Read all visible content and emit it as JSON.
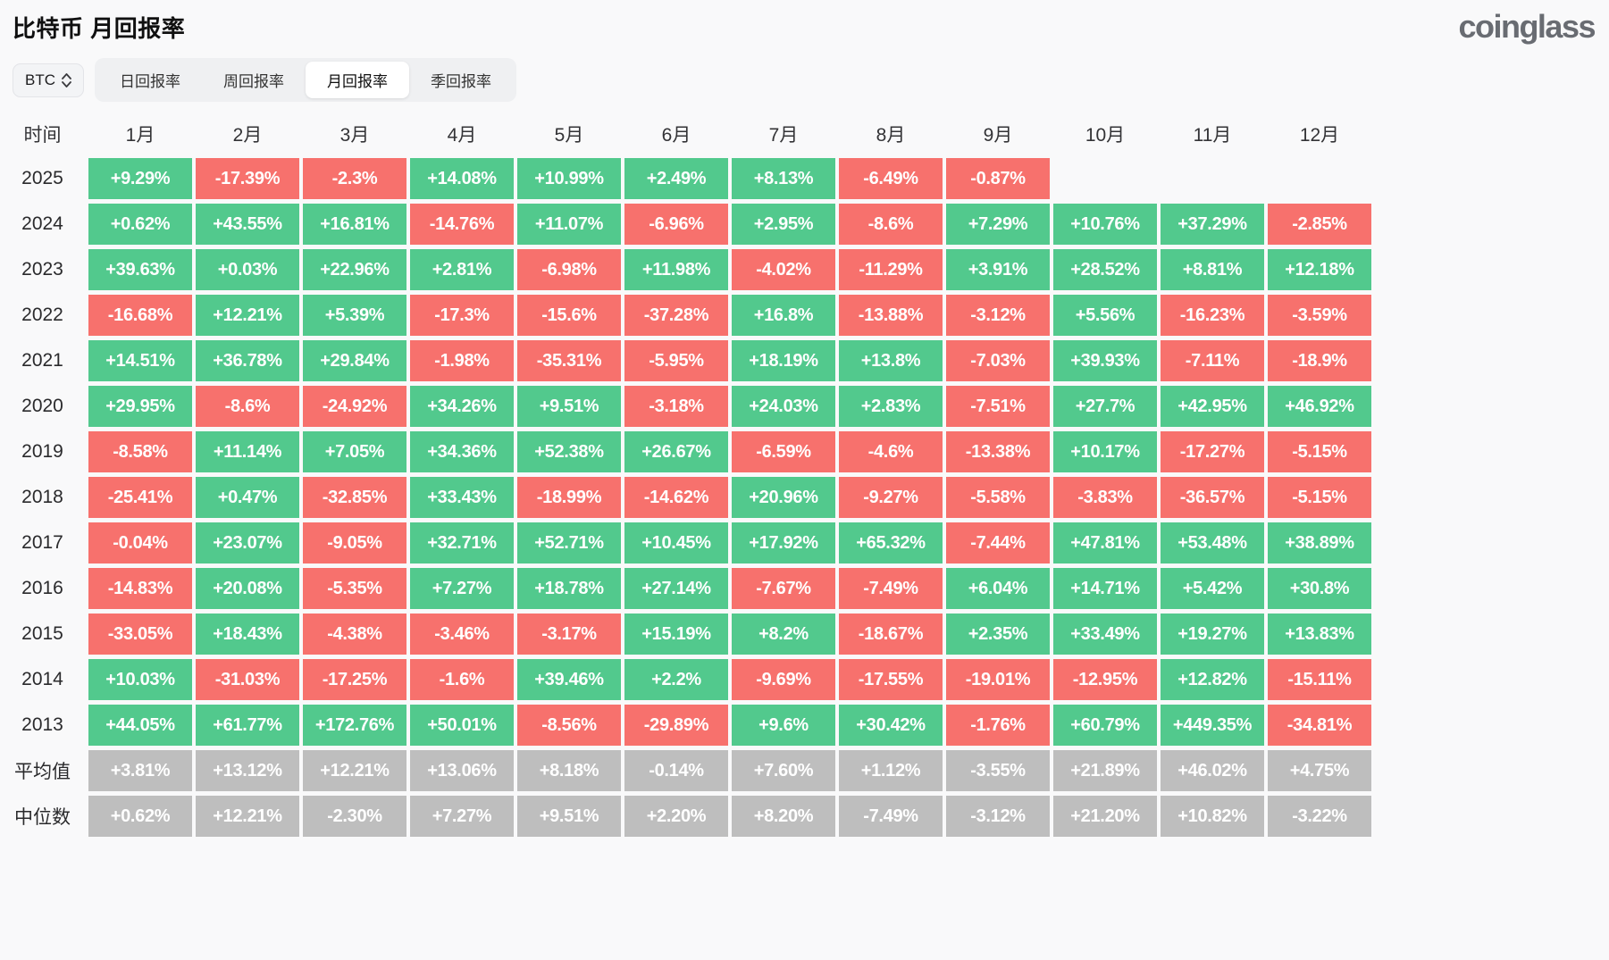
{
  "page": {
    "title": "比特币 月回报率",
    "logo": "coinglass"
  },
  "controls": {
    "coin_selector": {
      "value": "BTC"
    },
    "tabs": [
      {
        "label": "日回报率",
        "active": false
      },
      {
        "label": "周回报率",
        "active": false
      },
      {
        "label": "月回报率",
        "active": true
      },
      {
        "label": "季回报率",
        "active": false
      }
    ]
  },
  "colors": {
    "positive": "#52C98D",
    "negative": "#F7716D",
    "neutral": "#BEBEBE"
  },
  "chart_data": {
    "type": "heatmap",
    "title": "比特币 月回报率",
    "time_header": "时间",
    "columns": [
      "1月",
      "2月",
      "3月",
      "4月",
      "5月",
      "6月",
      "7月",
      "8月",
      "9月",
      "10月",
      "11月",
      "12月"
    ],
    "rows": [
      {
        "label": "2025",
        "kind": "year",
        "values": [
          "+9.29%",
          "-17.39%",
          "-2.3%",
          "+14.08%",
          "+10.99%",
          "+2.49%",
          "+8.13%",
          "-6.49%",
          "-0.87%",
          "",
          "",
          ""
        ]
      },
      {
        "label": "2024",
        "kind": "year",
        "values": [
          "+0.62%",
          "+43.55%",
          "+16.81%",
          "-14.76%",
          "+11.07%",
          "-6.96%",
          "+2.95%",
          "-8.6%",
          "+7.29%",
          "+10.76%",
          "+37.29%",
          "-2.85%"
        ]
      },
      {
        "label": "2023",
        "kind": "year",
        "values": [
          "+39.63%",
          "+0.03%",
          "+22.96%",
          "+2.81%",
          "-6.98%",
          "+11.98%",
          "-4.02%",
          "-11.29%",
          "+3.91%",
          "+28.52%",
          "+8.81%",
          "+12.18%"
        ]
      },
      {
        "label": "2022",
        "kind": "year",
        "values": [
          "-16.68%",
          "+12.21%",
          "+5.39%",
          "-17.3%",
          "-15.6%",
          "-37.28%",
          "+16.8%",
          "-13.88%",
          "-3.12%",
          "+5.56%",
          "-16.23%",
          "-3.59%"
        ]
      },
      {
        "label": "2021",
        "kind": "year",
        "values": [
          "+14.51%",
          "+36.78%",
          "+29.84%",
          "-1.98%",
          "-35.31%",
          "-5.95%",
          "+18.19%",
          "+13.8%",
          "-7.03%",
          "+39.93%",
          "-7.11%",
          "-18.9%"
        ]
      },
      {
        "label": "2020",
        "kind": "year",
        "values": [
          "+29.95%",
          "-8.6%",
          "-24.92%",
          "+34.26%",
          "+9.51%",
          "-3.18%",
          "+24.03%",
          "+2.83%",
          "-7.51%",
          "+27.7%",
          "+42.95%",
          "+46.92%"
        ]
      },
      {
        "label": "2019",
        "kind": "year",
        "values": [
          "-8.58%",
          "+11.14%",
          "+7.05%",
          "+34.36%",
          "+52.38%",
          "+26.67%",
          "-6.59%",
          "-4.6%",
          "-13.38%",
          "+10.17%",
          "-17.27%",
          "-5.15%"
        ]
      },
      {
        "label": "2018",
        "kind": "year",
        "values": [
          "-25.41%",
          "+0.47%",
          "-32.85%",
          "+33.43%",
          "-18.99%",
          "-14.62%",
          "+20.96%",
          "-9.27%",
          "-5.58%",
          "-3.83%",
          "-36.57%",
          "-5.15%"
        ]
      },
      {
        "label": "2017",
        "kind": "year",
        "values": [
          "-0.04%",
          "+23.07%",
          "-9.05%",
          "+32.71%",
          "+52.71%",
          "+10.45%",
          "+17.92%",
          "+65.32%",
          "-7.44%",
          "+47.81%",
          "+53.48%",
          "+38.89%"
        ]
      },
      {
        "label": "2016",
        "kind": "year",
        "values": [
          "-14.83%",
          "+20.08%",
          "-5.35%",
          "+7.27%",
          "+18.78%",
          "+27.14%",
          "-7.67%",
          "-7.49%",
          "+6.04%",
          "+14.71%",
          "+5.42%",
          "+30.8%"
        ]
      },
      {
        "label": "2015",
        "kind": "year",
        "values": [
          "-33.05%",
          "+18.43%",
          "-4.38%",
          "-3.46%",
          "-3.17%",
          "+15.19%",
          "+8.2%",
          "-18.67%",
          "+2.35%",
          "+33.49%",
          "+19.27%",
          "+13.83%"
        ]
      },
      {
        "label": "2014",
        "kind": "year",
        "values": [
          "+10.03%",
          "-31.03%",
          "-17.25%",
          "-1.6%",
          "+39.46%",
          "+2.2%",
          "-9.69%",
          "-17.55%",
          "-19.01%",
          "-12.95%",
          "+12.82%",
          "-15.11%"
        ]
      },
      {
        "label": "2013",
        "kind": "year",
        "values": [
          "+44.05%",
          "+61.77%",
          "+172.76%",
          "+50.01%",
          "-8.56%",
          "-29.89%",
          "+9.6%",
          "+30.42%",
          "-1.76%",
          "+60.79%",
          "+449.35%",
          "-34.81%"
        ]
      },
      {
        "label": "平均值",
        "kind": "stat",
        "values": [
          "+3.81%",
          "+13.12%",
          "+12.21%",
          "+13.06%",
          "+8.18%",
          "-0.14%",
          "+7.60%",
          "+1.12%",
          "-3.55%",
          "+21.89%",
          "+46.02%",
          "+4.75%"
        ]
      },
      {
        "label": "中位数",
        "kind": "stat",
        "values": [
          "+0.62%",
          "+12.21%",
          "-2.30%",
          "+7.27%",
          "+9.51%",
          "+2.20%",
          "+8.20%",
          "-7.49%",
          "-3.12%",
          "+21.20%",
          "+10.82%",
          "-3.22%"
        ]
      }
    ]
  }
}
